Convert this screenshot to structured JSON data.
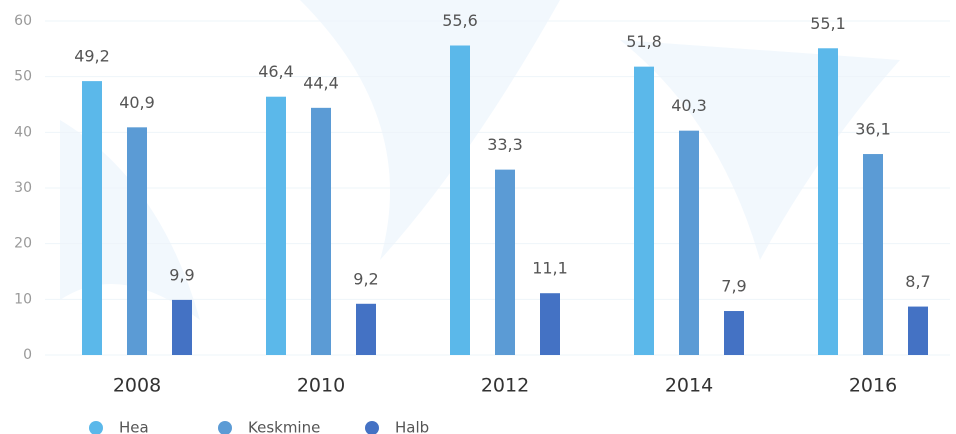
{
  "chart_data": {
    "type": "bar",
    "categories": [
      "2008",
      "2010",
      "2012",
      "2014",
      "2016"
    ],
    "series": [
      {
        "name": "Hea",
        "color": "#5bb8ea",
        "values": [
          49.2,
          46.4,
          55.6,
          51.8,
          55.1
        ],
        "value_labels": [
          "49,2",
          "46,4",
          "55,6",
          "51,8",
          "55,1"
        ]
      },
      {
        "name": "Keskmine",
        "color": "#5b9bd5",
        "values": [
          40.9,
          44.4,
          33.3,
          40.3,
          36.1
        ],
        "value_labels": [
          "40,9",
          "44,4",
          "33,3",
          "40,3",
          "36,1"
        ]
      },
      {
        "name": "Halb",
        "color": "#4472c4",
        "values": [
          9.9,
          9.2,
          11.1,
          7.9,
          8.7
        ],
        "value_labels": [
          "9,9",
          "9,2",
          "11,1",
          "7,9",
          "8,7"
        ]
      }
    ],
    "ylim": [
      0,
      60
    ],
    "yticks": [
      0,
      10,
      20,
      30,
      40,
      50,
      60
    ],
    "grid": true,
    "legend": "bottom"
  }
}
